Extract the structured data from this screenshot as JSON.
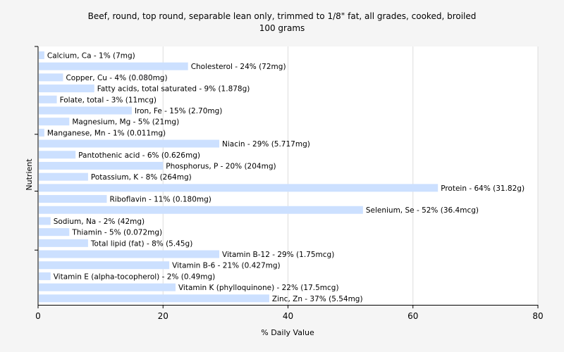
{
  "chart_data": {
    "type": "bar",
    "orientation": "horizontal",
    "title": "Beef, round, top round, separable lean only, trimmed to 1/8\" fat, all grades, cooked, broiled",
    "subtitle": "100 grams",
    "xlabel": "% Daily Value",
    "ylabel": "Nutrient",
    "xlim": [
      0,
      80
    ],
    "xticks": [
      0,
      20,
      40,
      60,
      80
    ],
    "grid": true,
    "bar_color": "#cce0ff",
    "background_color": "#f5f5f5",
    "plot_background_color": "#ffffff",
    "categories": [
      "Calcium, Ca",
      "Cholesterol",
      "Copper, Cu",
      "Fatty acids, total saturated",
      "Folate, total",
      "Iron, Fe",
      "Magnesium, Mg",
      "Manganese, Mn",
      "Niacin",
      "Pantothenic acid",
      "Phosphorus, P",
      "Potassium, K",
      "Protein",
      "Riboflavin",
      "Selenium, Se",
      "Sodium, Na",
      "Thiamin",
      "Total lipid (fat)",
      "Vitamin B-12",
      "Vitamin B-6",
      "Vitamin E (alpha-tocopherol)",
      "Vitamin K (phylloquinone)",
      "Zinc, Zn"
    ],
    "values": [
      1,
      24,
      4,
      9,
      3,
      15,
      5,
      1,
      29,
      6,
      20,
      8,
      64,
      11,
      52,
      2,
      5,
      8,
      29,
      21,
      2,
      22,
      37
    ],
    "labels": [
      "Calcium, Ca - 1% (7mg)",
      "Cholesterol - 24% (72mg)",
      "Copper, Cu - 4% (0.080mg)",
      "Fatty acids, total saturated - 9% (1.878g)",
      "Folate, total - 3% (11mcg)",
      "Iron, Fe - 15% (2.70mg)",
      "Magnesium, Mg - 5% (21mg)",
      "Manganese, Mn - 1% (0.011mg)",
      "Niacin - 29% (5.717mg)",
      "Pantothenic acid - 6% (0.626mg)",
      "Phosphorus, P - 20% (204mg)",
      "Potassium, K - 8% (264mg)",
      "Protein - 64% (31.82g)",
      "Riboflavin - 11% (0.180mg)",
      "Selenium, Se - 52% (36.4mcg)",
      "Sodium, Na - 2% (42mg)",
      "Thiamin - 5% (0.072mg)",
      "Total lipid (fat) - 8% (5.45g)",
      "Vitamin B-12 - 29% (1.75mcg)",
      "Vitamin B-6 - 21% (0.427mg)",
      "Vitamin E (alpha-tocopherol) - 2% (0.49mg)",
      "Vitamin K (phylloquinone) - 22% (17.5mcg)",
      "Zinc, Zn - 37% (5.54mg)"
    ]
  }
}
